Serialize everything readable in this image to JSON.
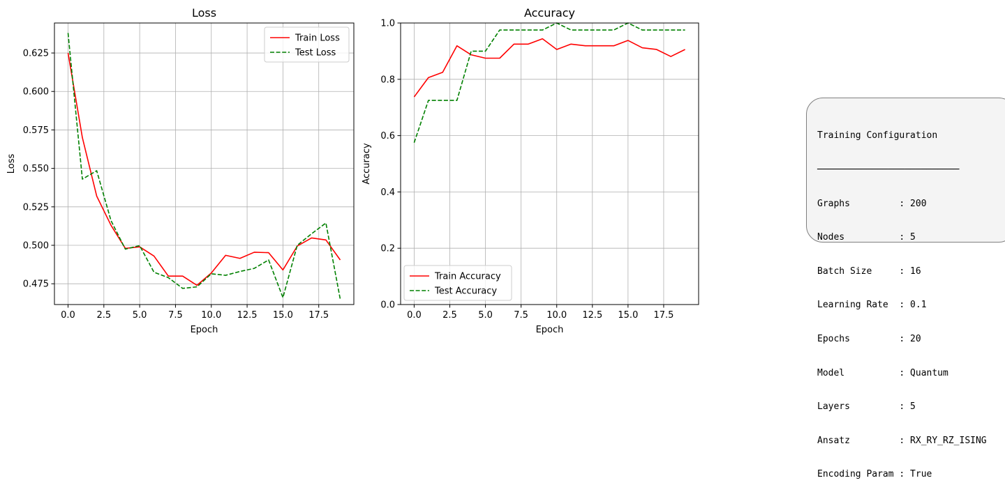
{
  "chart_data": [
    {
      "type": "line",
      "title": "Loss",
      "xlabel": "Epoch",
      "ylabel": "Loss",
      "xlim": [
        -0.95,
        19.95
      ],
      "ylim": [
        0.4615,
        0.6445
      ],
      "xticks": [
        0.0,
        2.5,
        5.0,
        7.5,
        10.0,
        12.5,
        15.0,
        17.5
      ],
      "xtick_labels": [
        "0.0",
        "2.5",
        "5.0",
        "7.5",
        "10.0",
        "12.5",
        "15.0",
        "17.5"
      ],
      "yticks": [
        0.475,
        0.5,
        0.525,
        0.55,
        0.575,
        0.6,
        0.625
      ],
      "ytick_labels": [
        "0.475",
        "0.500",
        "0.525",
        "0.550",
        "0.575",
        "0.600",
        "0.625"
      ],
      "grid": true,
      "legend_position": "top-right",
      "x": [
        0,
        1,
        2,
        3,
        4,
        5,
        6,
        7,
        8,
        9,
        10,
        11,
        12,
        13,
        14,
        15,
        16,
        17,
        18,
        19
      ],
      "series": [
        {
          "name": "Train Loss",
          "color": "#ff0000",
          "dash": "solid",
          "values": [
            0.625,
            0.57,
            0.532,
            0.513,
            0.498,
            0.499,
            0.493,
            0.48,
            0.48,
            0.474,
            0.482,
            0.4935,
            0.4915,
            0.4955,
            0.4952,
            0.484,
            0.4995,
            0.5048,
            0.5035,
            0.4905
          ]
        },
        {
          "name": "Test Loss",
          "color": "#008000",
          "dash": "dashed",
          "values": [
            0.638,
            0.543,
            0.5485,
            0.516,
            0.4975,
            0.4998,
            0.4825,
            0.479,
            0.472,
            0.473,
            0.4815,
            0.4805,
            0.483,
            0.485,
            0.4905,
            0.466,
            0.5,
            0.5075,
            0.5145,
            0.465
          ]
        }
      ]
    },
    {
      "type": "line",
      "title": "Accuracy",
      "xlabel": "Epoch",
      "ylabel": "Accuracy",
      "xlim": [
        -0.95,
        19.95
      ],
      "ylim": [
        0.0,
        1.0
      ],
      "xticks": [
        0.0,
        2.5,
        5.0,
        7.5,
        10.0,
        12.5,
        15.0,
        17.5
      ],
      "xtick_labels": [
        "0.0",
        "2.5",
        "5.0",
        "7.5",
        "10.0",
        "12.5",
        "15.0",
        "17.5"
      ],
      "yticks": [
        0.0,
        0.2,
        0.4,
        0.6,
        0.8,
        1.0
      ],
      "ytick_labels": [
        "0.0",
        "0.2",
        "0.4",
        "0.6",
        "0.8",
        "1.0"
      ],
      "grid": true,
      "legend_position": "bottom-left",
      "x": [
        0,
        1,
        2,
        3,
        4,
        5,
        6,
        7,
        8,
        9,
        10,
        11,
        12,
        13,
        14,
        15,
        16,
        17,
        18,
        19
      ],
      "series": [
        {
          "name": "Train Accuracy",
          "color": "#ff0000",
          "dash": "solid",
          "values": [
            0.7375,
            0.806,
            0.825,
            0.919,
            0.887,
            0.875,
            0.875,
            0.925,
            0.925,
            0.944,
            0.906,
            0.925,
            0.919,
            0.919,
            0.919,
            0.938,
            0.912,
            0.906,
            0.881,
            0.906
          ]
        },
        {
          "name": "Test Accuracy",
          "color": "#008000",
          "dash": "dashed",
          "values": [
            0.575,
            0.725,
            0.725,
            0.725,
            0.9,
            0.9,
            0.975,
            0.975,
            0.975,
            0.975,
            1.0,
            0.975,
            0.975,
            0.975,
            0.975,
            1.0,
            0.975,
            0.975,
            0.975,
            0.975
          ]
        }
      ]
    }
  ],
  "config_panel": {
    "lines": [
      "Training Configuration",
      "──────────────────────────",
      "Graphs         : 200",
      "Nodes          : 5",
      "Batch Size     : 16",
      "Learning Rate  : 0.1",
      "Epochs         : 20",
      "Model          : Quantum",
      "Layers         : 5",
      "Ansatz         : RX_RY_RZ_ISING",
      "Encoding Param : True"
    ]
  }
}
